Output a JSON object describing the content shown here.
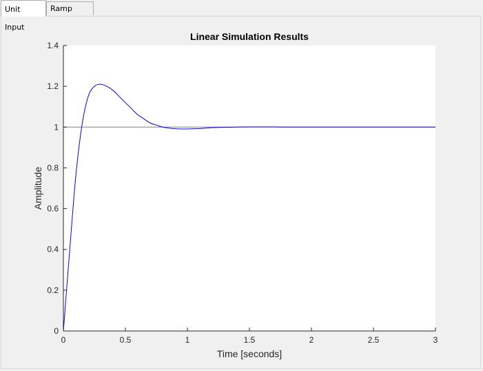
{
  "tabs": [
    {
      "label": "Unit Input",
      "active": true
    },
    {
      "label": "Ramp Input",
      "active": false
    }
  ],
  "chart_data": {
    "type": "line",
    "title": "Linear Simulation Results",
    "xlabel": "Time [seconds]",
    "ylabel": "Amplitude",
    "xlim": [
      0,
      3
    ],
    "ylim": [
      0,
      1.4
    ],
    "xticks": [
      0,
      0.5,
      1,
      1.5,
      2,
      2.5,
      3
    ],
    "xtick_labels": [
      "0",
      "0.5",
      "1",
      "1.5",
      "2",
      "2.5",
      "3"
    ],
    "yticks": [
      0,
      0.2,
      0.4,
      0.6,
      0.8,
      1,
      1.2,
      1.4
    ],
    "ytick_labels": [
      "0",
      "0.2",
      "0.4",
      "0.6",
      "0.8",
      "1",
      "1.2",
      "1.4"
    ],
    "grid": false,
    "reference_line": {
      "y": 1,
      "color": "#808080"
    },
    "series": [
      {
        "color": "#0000ff",
        "x": [
          0,
          0.05,
          0.1,
          0.15,
          0.2,
          0.25,
          0.3,
          0.35,
          0.4,
          0.45,
          0.5,
          0.55,
          0.6,
          0.65,
          0.7,
          0.75,
          0.8,
          0.85,
          0.9,
          0.95,
          1.0,
          1.05,
          1.1,
          1.15,
          1.2,
          1.3,
          1.4,
          1.5,
          1.6,
          1.7,
          1.8,
          2.0,
          2.2,
          2.5,
          3.0
        ],
        "y": [
          0,
          0.39,
          0.76,
          1.01,
          1.15,
          1.2,
          1.21,
          1.2,
          1.18,
          1.15,
          1.12,
          1.09,
          1.06,
          1.04,
          1.02,
          1.01,
          1.0,
          0.995,
          0.992,
          0.991,
          0.991,
          0.992,
          0.993,
          0.995,
          0.997,
          0.999,
          1.0,
          1.001,
          1.001,
          1.001,
          1.0,
          1.0,
          1.0,
          1.0,
          1.0
        ]
      }
    ]
  }
}
